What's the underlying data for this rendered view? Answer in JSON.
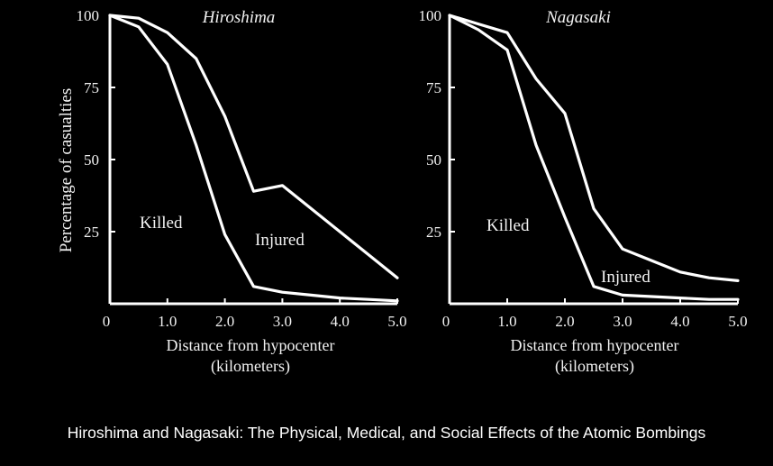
{
  "chart_data": [
    {
      "type": "line",
      "title": "Hiroshima",
      "xlabel": "Distance from hypocenter",
      "xlabel_unit": "(kilometers)",
      "ylabel": "Percentage of casualties",
      "xlim": [
        0,
        5
      ],
      "ylim": [
        0,
        100
      ],
      "x_ticks": [
        "0",
        "1.0",
        "2.0",
        "3.0",
        "4.0",
        "5.0"
      ],
      "y_ticks": [
        "100",
        "75",
        "50",
        "25"
      ],
      "grid": false,
      "series": [
        {
          "name": "Killed",
          "x": [
            0,
            0.5,
            1.0,
            1.5,
            2.0,
            2.5,
            3.0,
            3.5,
            4.0,
            4.5,
            5.0
          ],
          "values": [
            100,
            96,
            83,
            55,
            24,
            6,
            4,
            3,
            2,
            1.5,
            1
          ]
        },
        {
          "name": "Injured",
          "x": [
            0,
            0.5,
            1.0,
            1.5,
            2.0,
            2.5,
            3.0,
            3.5,
            4.0,
            4.5,
            5.0
          ],
          "values": [
            100,
            99,
            94,
            85,
            65,
            39,
            41,
            33,
            25,
            17,
            9
          ]
        }
      ]
    },
    {
      "type": "line",
      "title": "Nagasaki",
      "xlabel": "Distance from hypocenter",
      "xlabel_unit": "(kilometers)",
      "ylabel": "",
      "xlim": [
        0,
        5
      ],
      "ylim": [
        0,
        100
      ],
      "x_ticks": [
        "0",
        "1.0",
        "2.0",
        "3.0",
        "4.0",
        "5.0"
      ],
      "y_ticks": [
        "100",
        "75",
        "50",
        "25"
      ],
      "grid": false,
      "series": [
        {
          "name": "Killed",
          "x": [
            0,
            0.5,
            1.0,
            1.5,
            2.0,
            2.5,
            3.0,
            3.5,
            4.0,
            4.5,
            5.0
          ],
          "values": [
            100,
            95,
            88,
            55,
            30,
            6,
            3,
            2.5,
            2,
            1.5,
            1.5
          ]
        },
        {
          "name": "Injured",
          "x": [
            0,
            0.5,
            1.0,
            1.5,
            2.0,
            2.5,
            3.0,
            3.5,
            4.0,
            4.5,
            5.0
          ],
          "values": [
            100,
            97,
            94,
            78,
            66,
            33,
            19,
            15,
            11,
            9,
            8
          ]
        }
      ]
    }
  ],
  "caption": "Hiroshima and Nagasaki: The Physical, Medical, and Social Effects of the Atomic Bombings"
}
